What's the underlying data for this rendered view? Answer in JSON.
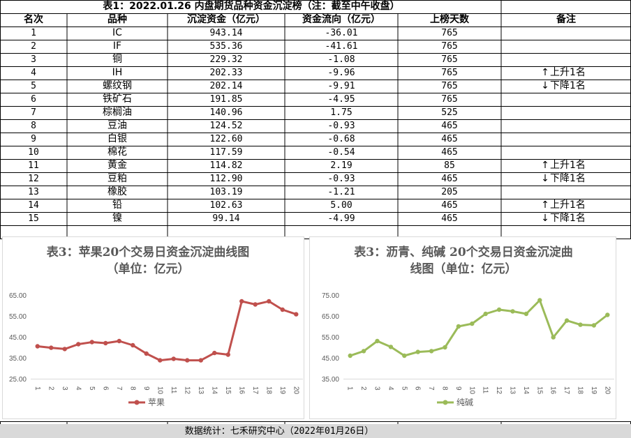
{
  "table": {
    "title": "表1：2022.01.26 内盘期货品种资金沉淀榜（注：截至中午收盘）",
    "headers": [
      "名次",
      "品种",
      "沉淀资金（亿元）",
      "资金流向（亿元）",
      "上榜天数",
      "备注"
    ],
    "rows": [
      {
        "rank": "1",
        "name": "IC",
        "fund": "943.14",
        "flow": "-36.01",
        "days": "765",
        "note_arrow": "",
        "note": ""
      },
      {
        "rank": "2",
        "name": "IF",
        "fund": "535.36",
        "flow": "-41.61",
        "days": "765",
        "note_arrow": "",
        "note": ""
      },
      {
        "rank": "3",
        "name": "铜",
        "fund": "229.32",
        "flow": "-1.08",
        "days": "765",
        "note_arrow": "",
        "note": ""
      },
      {
        "rank": "4",
        "name": "IH",
        "fund": "202.33",
        "flow": "-9.96",
        "days": "765",
        "note_arrow": "↑",
        "note": "上升1名"
      },
      {
        "rank": "5",
        "name": "螺纹钢",
        "fund": "202.14",
        "flow": "-9.91",
        "days": "765",
        "note_arrow": "↓",
        "note": "下降1名"
      },
      {
        "rank": "6",
        "name": "铁矿石",
        "fund": "191.85",
        "flow": "-4.95",
        "days": "765",
        "note_arrow": "",
        "note": ""
      },
      {
        "rank": "7",
        "name": "棕榈油",
        "fund": "140.96",
        "flow": "1.75",
        "days": "525",
        "note_arrow": "",
        "note": ""
      },
      {
        "rank": "8",
        "name": "豆油",
        "fund": "124.52",
        "flow": "-0.93",
        "days": "465",
        "note_arrow": "",
        "note": ""
      },
      {
        "rank": "9",
        "name": "白银",
        "fund": "122.60",
        "flow": "-0.68",
        "days": "465",
        "note_arrow": "",
        "note": ""
      },
      {
        "rank": "10",
        "name": "棉花",
        "fund": "117.59",
        "flow": "-0.54",
        "days": "465",
        "note_arrow": "",
        "note": ""
      },
      {
        "rank": "11",
        "name": "黄金",
        "fund": "114.82",
        "flow": "2.19",
        "days": "85",
        "note_arrow": "↑",
        "note": "上升1名"
      },
      {
        "rank": "12",
        "name": "豆粕",
        "fund": "112.90",
        "flow": "-0.93",
        "days": "465",
        "note_arrow": "↓",
        "note": "下降1名"
      },
      {
        "rank": "13",
        "name": "橡胶",
        "fund": "103.19",
        "flow": "-1.21",
        "days": "205",
        "note_arrow": "",
        "note": ""
      },
      {
        "rank": "14",
        "name": "铅",
        "fund": "102.63",
        "flow": "5.00",
        "days": "465",
        "note_arrow": "↑",
        "note": "上升1名"
      },
      {
        "rank": "15",
        "name": "镍",
        "fund": "99.14",
        "flow": "-4.99",
        "days": "465",
        "note_arrow": "↓",
        "note": "下降1名"
      }
    ]
  },
  "chart_data": [
    {
      "type": "line",
      "title": "表3：苹果20个交易日资金沉淀曲线图（单位：亿元）",
      "title_lines": [
        "表3：苹果20个交易日资金沉淀曲线图",
        "（单位：亿元）"
      ],
      "x": [
        "1",
        "2",
        "3",
        "4",
        "5",
        "6",
        "7",
        "8",
        "9",
        "10",
        "11",
        "12",
        "13",
        "14",
        "15",
        "16",
        "17",
        "18",
        "19",
        "20"
      ],
      "series": [
        {
          "name": "苹果",
          "color": "#c0504d",
          "values": [
            40.5,
            39.8,
            39.2,
            41.5,
            42.5,
            42.0,
            43.0,
            41.0,
            37.0,
            33.8,
            34.5,
            33.8,
            33.8,
            37.3,
            36.5,
            62.0,
            60.5,
            62.0,
            58.0,
            55.8
          ]
        }
      ],
      "ylim": [
        25,
        65
      ],
      "yticks": [
        "25.00",
        "35.00",
        "45.00",
        "55.00",
        "65.00"
      ],
      "grid": false,
      "legend": "bottom"
    },
    {
      "type": "line",
      "title": "表3：沥青、纯碱 20个交易日资金沉淀曲线图（单位：亿元）",
      "title_lines": [
        "表3：沥青、纯碱 20个交易日资金沉淀曲",
        "线图（单位：亿元）"
      ],
      "x": [
        "1",
        "2",
        "3",
        "4",
        "5",
        "6",
        "7",
        "8",
        "9",
        "10",
        "11",
        "12",
        "13",
        "14",
        "15",
        "16",
        "17",
        "18",
        "19",
        "20"
      ],
      "series": [
        {
          "name": "纯碱",
          "color": "#9bbb59",
          "values": [
            46.0,
            48.2,
            53.0,
            50.2,
            46.0,
            47.8,
            48.2,
            50.0,
            60.0,
            61.3,
            66.0,
            68.0,
            67.2,
            66.0,
            72.5,
            54.8,
            62.8,
            60.8,
            60.5,
            65.5
          ]
        }
      ],
      "ylim": [
        35,
        75
      ],
      "yticks": [
        "35.00",
        "45.00",
        "55.00",
        "65.00",
        "75.00"
      ],
      "grid": false,
      "legend": "bottom"
    }
  ],
  "footer": {
    "source": "数据统计：七禾研究中心（2022年01月26日）"
  }
}
